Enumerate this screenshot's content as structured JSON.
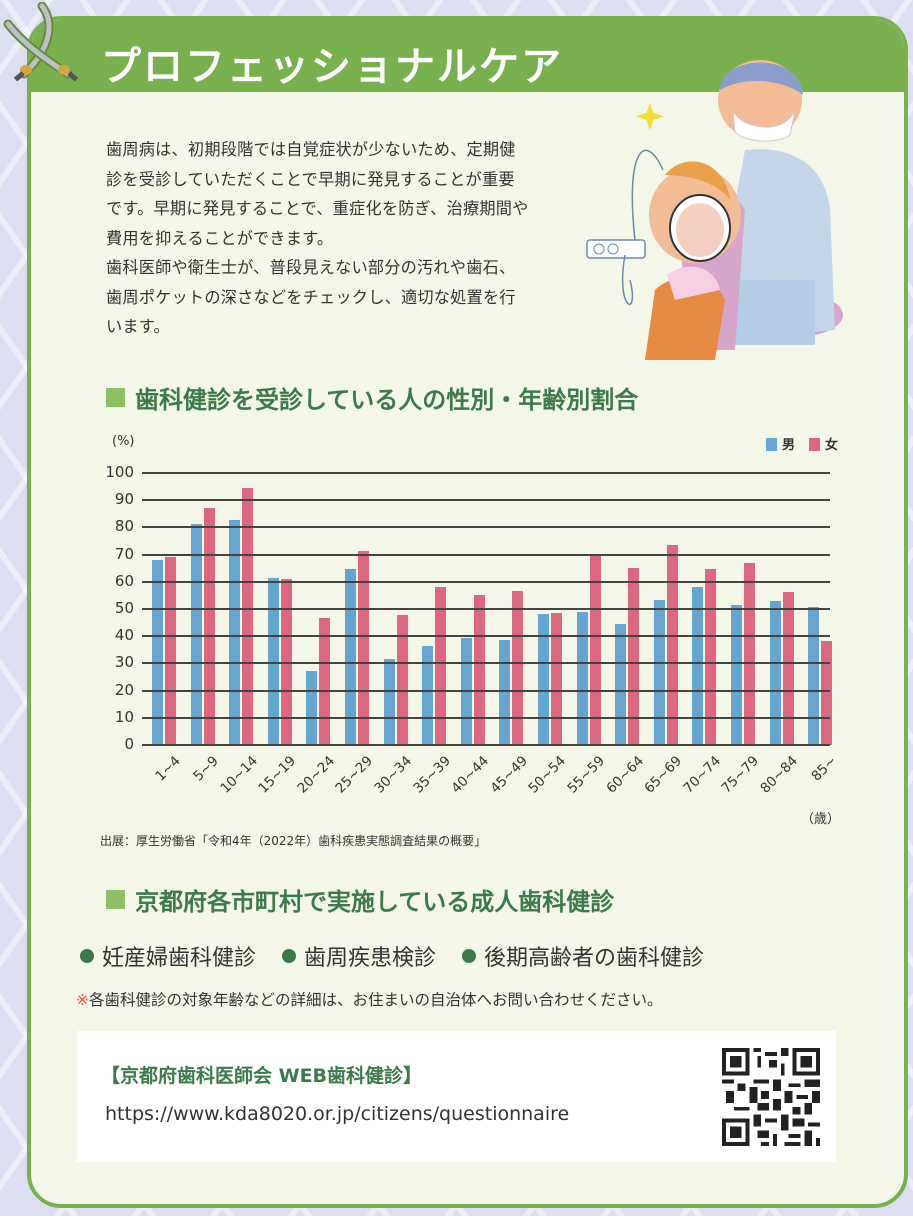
{
  "header": {
    "title": "プロフェッショナルケア"
  },
  "intro": {
    "lines": [
      "歯周病は、初期段階では自覚症状が少ないため、定期健",
      "診を受診していただくことで早期に発見することが重要",
      "です。早期に発見することで、重症化を防ぎ、治療期間や",
      "費用を抑えることができます。",
      "歯科医師や衛生士が、普段見えない部分の汚れや歯石、",
      "歯周ポケットの深さなどをチェックし、適切な処置を行",
      "います。"
    ]
  },
  "chart_section": {
    "title": "歯科健診を受診している人の性別・年齢別割合",
    "unit": "(%)",
    "x_unit": "（歳）",
    "source": "出展：厚生労働省「令和4年（2022年）歯科疾患実態調査結果の概要」",
    "legend": [
      {
        "label": "男",
        "color": "#65a5d2"
      },
      {
        "label": "女",
        "color": "#de6780"
      }
    ]
  },
  "chart_data": {
    "type": "bar",
    "title": "歯科健診を受診している人の性別・年齢別割合",
    "xlabel": "（歳）",
    "ylabel": "(%)",
    "ylim": [
      0,
      100
    ],
    "yticks": [
      0,
      10,
      20,
      30,
      40,
      50,
      60,
      70,
      80,
      90,
      100
    ],
    "grid": true,
    "legend_position": "top-right",
    "categories": [
      "1~4",
      "5~9",
      "10~14",
      "15~19",
      "20~24",
      "25~29",
      "30~34",
      "35~39",
      "40~44",
      "45~49",
      "50~54",
      "55~59",
      "60~64",
      "65~69",
      "70~74",
      "75~79",
      "80~84",
      "85~"
    ],
    "series": [
      {
        "name": "男",
        "color": "#65a5d2",
        "values": [
          68.0,
          81.2,
          82.7,
          61.4,
          27.1,
          64.7,
          31.6,
          36.4,
          39.5,
          38.7,
          48.0,
          49.0,
          44.4,
          53.2,
          58.2,
          51.5,
          52.8,
          50.6
        ]
      },
      {
        "name": "女",
        "color": "#de6780",
        "values": [
          69.1,
          87.1,
          94.5,
          61.0,
          46.7,
          71.3,
          47.8,
          58.2,
          55.0,
          56.5,
          48.6,
          69.6,
          65.1,
          73.6,
          64.8,
          67.0,
          56.1,
          38.4
        ]
      }
    ]
  },
  "programs_section": {
    "title": "京都府各市町村で実施している成人歯科健診",
    "items": [
      "妊産婦歯科健診",
      "歯周疾患検診",
      "後期高齢者の歯科健診"
    ],
    "note_mark": "※",
    "note": "各歯科健診の対象年齢などの詳細は、お住まいの自治体へお問い合わせください。"
  },
  "link_box": {
    "title": "【京都府歯科医師会 WEB歯科健診】",
    "url": "https://www.kda8020.or.jp/citizens/questionnaire"
  },
  "colors": {
    "header_green": "#78b050",
    "title_green": "#3d7a4a",
    "card_bg": "#f4f7e8",
    "page_bg": "#dcdff1",
    "male": "#65a5d2",
    "female": "#de6780"
  }
}
